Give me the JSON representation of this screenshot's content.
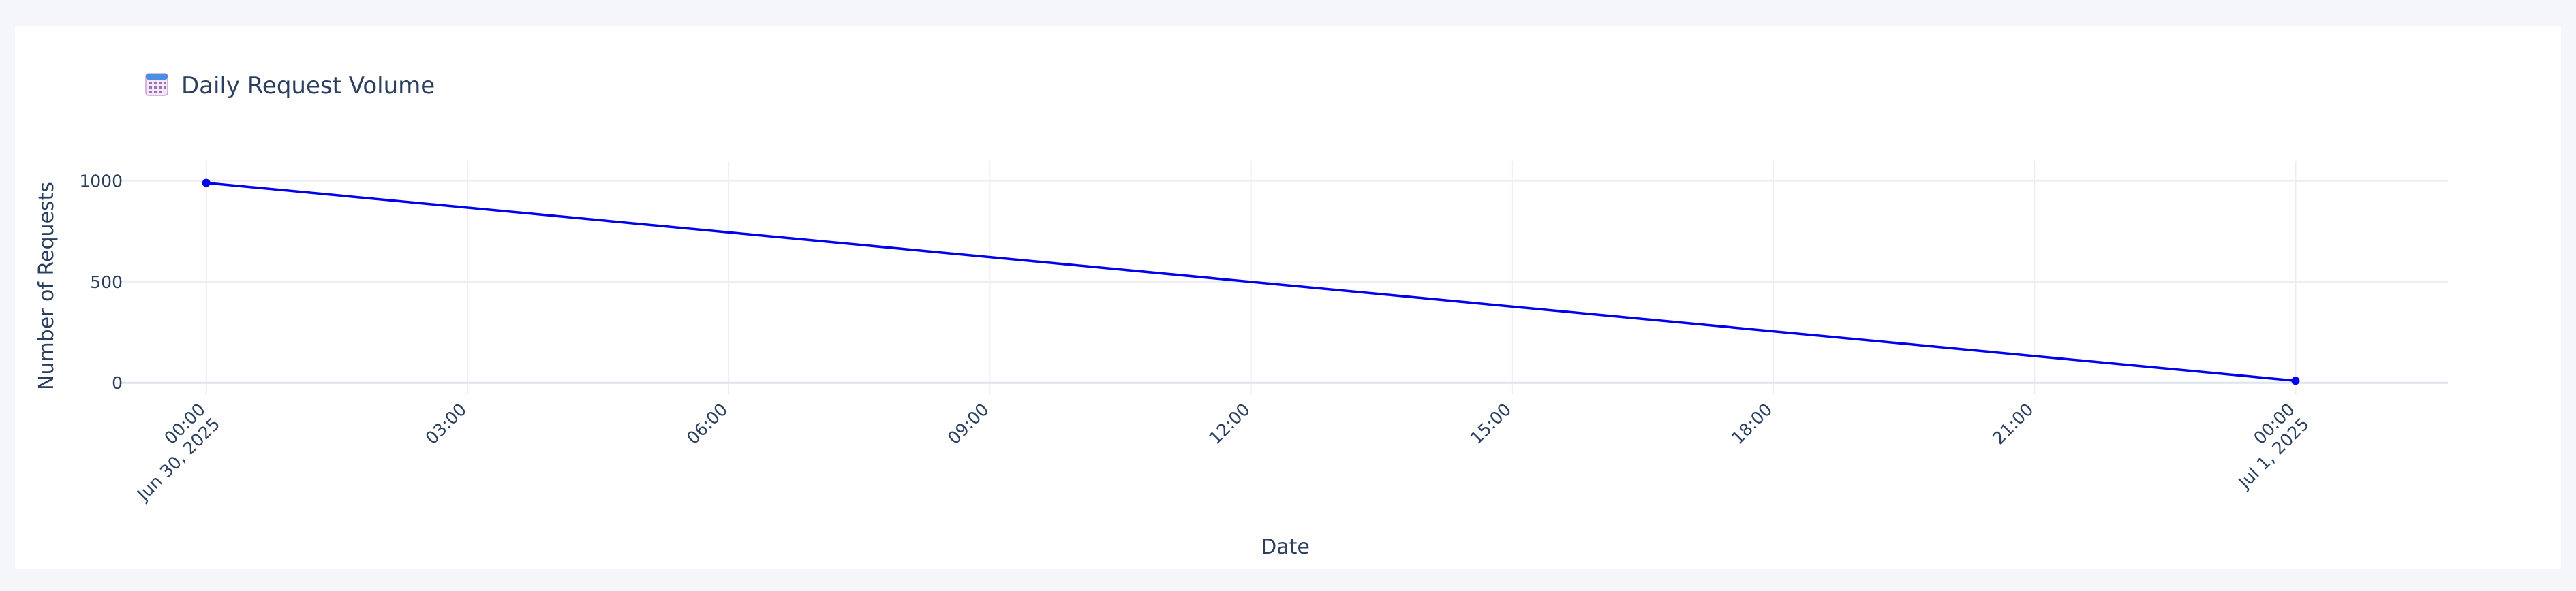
{
  "chart_data": {
    "type": "line",
    "title": "Daily Request Volume",
    "title_icon": "calendar-icon",
    "xlabel": "Date",
    "ylabel": "Number of Requests",
    "x": [
      "2025-06-30 00:00",
      "2025-07-01 00:00"
    ],
    "series": [
      {
        "values": [
          990,
          10
        ],
        "color": "#0000ee"
      }
    ],
    "x_ticks": [
      {
        "value": "2025-06-30 00:00",
        "label": [
          "00:00",
          "Jun 30, 2025"
        ]
      },
      {
        "value": "2025-06-30 03:00",
        "label": [
          "03:00"
        ]
      },
      {
        "value": "2025-06-30 06:00",
        "label": [
          "06:00"
        ]
      },
      {
        "value": "2025-06-30 09:00",
        "label": [
          "09:00"
        ]
      },
      {
        "value": "2025-06-30 12:00",
        "label": [
          "12:00"
        ]
      },
      {
        "value": "2025-06-30 15:00",
        "label": [
          "15:00"
        ]
      },
      {
        "value": "2025-06-30 18:00",
        "label": [
          "18:00"
        ]
      },
      {
        "value": "2025-06-30 21:00",
        "label": [
          "21:00"
        ]
      },
      {
        "value": "2025-07-01 00:00",
        "label": [
          "00:00",
          "Jul 1, 2025"
        ]
      }
    ],
    "y_ticks": [
      0,
      500,
      1000
    ],
    "xlim": [
      "2025-06-29 23:00",
      "2025-07-01 01:45"
    ],
    "ylim": [
      -60,
      1100
    ],
    "grid": true,
    "legend": false,
    "colors": {
      "line": "#0000ee",
      "grid": "#ebedf3",
      "text": "#2a3f5f",
      "background": "#ffffff",
      "page": "#f5f6f9"
    }
  }
}
